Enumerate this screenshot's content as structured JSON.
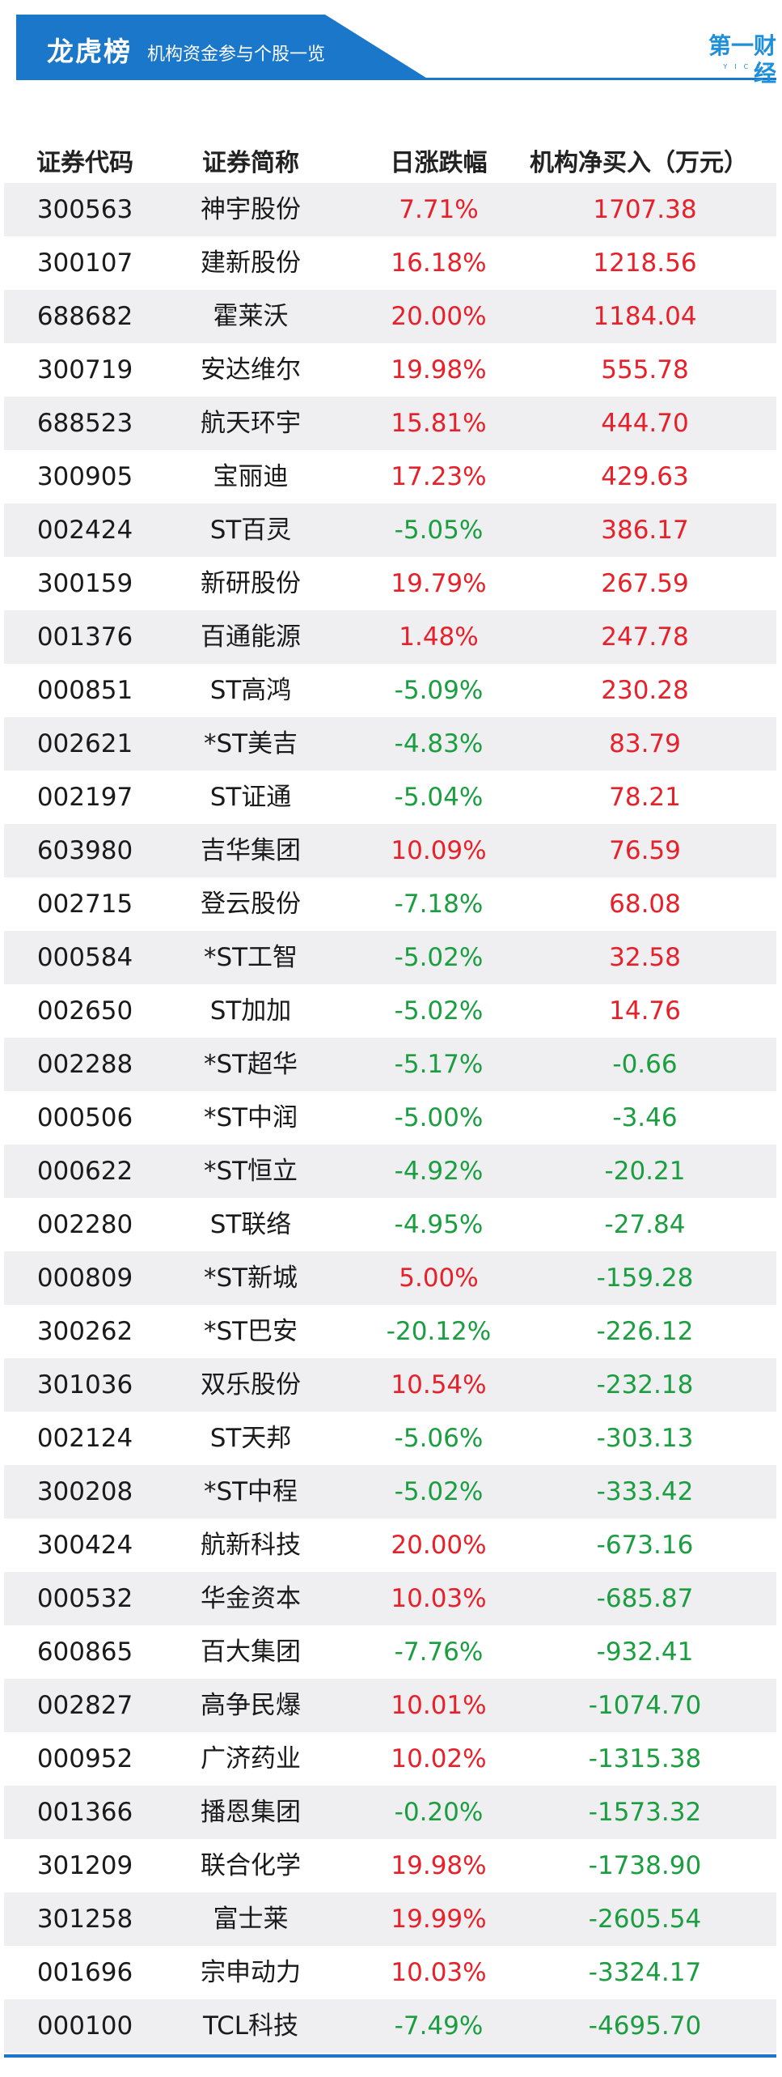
{
  "header": {
    "title": "龙虎榜",
    "subtitle": "机构资金参与个股一览",
    "logo_text": "第一财经",
    "logo_sub": "YICAI",
    "colors": {
      "banner": "#1a77c9",
      "line": "#1a77c9",
      "positive": "#e8202a",
      "negative": "#1a9e40"
    }
  },
  "table": {
    "columns": [
      "证券代码",
      "证券简称",
      "日涨跌幅",
      "机构净买入（万元）"
    ],
    "rows": [
      {
        "code": "300563",
        "name": "神宇股份",
        "change": "7.71%",
        "net_buy": "1707.38"
      },
      {
        "code": "300107",
        "name": "建新股份",
        "change": "16.18%",
        "net_buy": "1218.56"
      },
      {
        "code": "688682",
        "name": "霍莱沃",
        "change": "20.00%",
        "net_buy": "1184.04"
      },
      {
        "code": "300719",
        "name": "安达维尔",
        "change": "19.98%",
        "net_buy": "555.78"
      },
      {
        "code": "688523",
        "name": "航天环宇",
        "change": "15.81%",
        "net_buy": "444.70"
      },
      {
        "code": "300905",
        "name": "宝丽迪",
        "change": "17.23%",
        "net_buy": "429.63"
      },
      {
        "code": "002424",
        "name": "ST百灵",
        "change": "-5.05%",
        "net_buy": "386.17"
      },
      {
        "code": "300159",
        "name": "新研股份",
        "change": "19.79%",
        "net_buy": "267.59"
      },
      {
        "code": "001376",
        "name": "百通能源",
        "change": "1.48%",
        "net_buy": "247.78"
      },
      {
        "code": "000851",
        "name": "ST高鸿",
        "change": "-5.09%",
        "net_buy": "230.28"
      },
      {
        "code": "002621",
        "name": "*ST美吉",
        "change": "-4.83%",
        "net_buy": "83.79"
      },
      {
        "code": "002197",
        "name": "ST证通",
        "change": "-5.04%",
        "net_buy": "78.21"
      },
      {
        "code": "603980",
        "name": "吉华集团",
        "change": "10.09%",
        "net_buy": "76.59"
      },
      {
        "code": "002715",
        "name": "登云股份",
        "change": "-7.18%",
        "net_buy": "68.08"
      },
      {
        "code": "000584",
        "name": "*ST工智",
        "change": "-5.02%",
        "net_buy": "32.58"
      },
      {
        "code": "002650",
        "name": "ST加加",
        "change": "-5.02%",
        "net_buy": "14.76"
      },
      {
        "code": "002288",
        "name": "*ST超华",
        "change": "-5.17%",
        "net_buy": "-0.66"
      },
      {
        "code": "000506",
        "name": "*ST中润",
        "change": "-5.00%",
        "net_buy": "-3.46"
      },
      {
        "code": "000622",
        "name": "*ST恒立",
        "change": "-4.92%",
        "net_buy": "-20.21"
      },
      {
        "code": "002280",
        "name": "ST联络",
        "change": "-4.95%",
        "net_buy": "-27.84"
      },
      {
        "code": "000809",
        "name": "*ST新城",
        "change": "5.00%",
        "net_buy": "-159.28"
      },
      {
        "code": "300262",
        "name": "*ST巴安",
        "change": "-20.12%",
        "net_buy": "-226.12"
      },
      {
        "code": "301036",
        "name": "双乐股份",
        "change": "10.54%",
        "net_buy": "-232.18"
      },
      {
        "code": "002124",
        "name": "ST天邦",
        "change": "-5.06%",
        "net_buy": "-303.13"
      },
      {
        "code": "300208",
        "name": "*ST中程",
        "change": "-5.02%",
        "net_buy": "-333.42"
      },
      {
        "code": "300424",
        "name": "航新科技",
        "change": "20.00%",
        "net_buy": "-673.16"
      },
      {
        "code": "000532",
        "name": "华金资本",
        "change": "10.03%",
        "net_buy": "-685.87"
      },
      {
        "code": "600865",
        "name": "百大集团",
        "change": "-7.76%",
        "net_buy": "-932.41"
      },
      {
        "code": "002827",
        "name": "高争民爆",
        "change": "10.01%",
        "net_buy": "-1074.70"
      },
      {
        "code": "000952",
        "name": "广济药业",
        "change": "10.02%",
        "net_buy": "-1315.38"
      },
      {
        "code": "001366",
        "name": "播恩集团",
        "change": "-0.20%",
        "net_buy": "-1573.32"
      },
      {
        "code": "301209",
        "name": "联合化学",
        "change": "19.98%",
        "net_buy": "-1738.90"
      },
      {
        "code": "301258",
        "name": "富士莱",
        "change": "19.99%",
        "net_buy": "-2605.54"
      },
      {
        "code": "001696",
        "name": "宗申动力",
        "change": "10.03%",
        "net_buy": "-3324.17"
      },
      {
        "code": "000100",
        "name": "TCL科技",
        "change": "-7.49%",
        "net_buy": "-4695.70"
      }
    ]
  }
}
